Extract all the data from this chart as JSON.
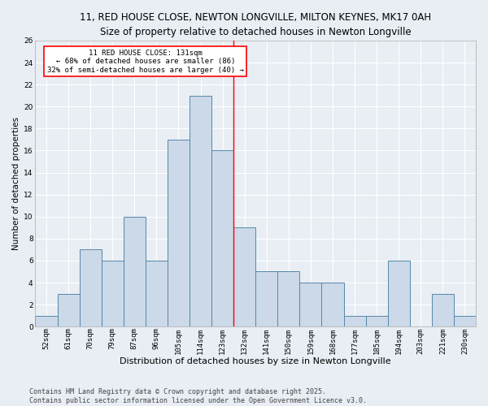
{
  "title": "11, RED HOUSE CLOSE, NEWTON LONGVILLE, MILTON KEYNES, MK17 0AH",
  "subtitle": "Size of property relative to detached houses in Newton Longville",
  "xlabel": "Distribution of detached houses by size in Newton Longville",
  "ylabel": "Number of detached properties",
  "bar_values": [
    1,
    3,
    7,
    6,
    10,
    6,
    17,
    21,
    16,
    9,
    5,
    5,
    4,
    4,
    1,
    1,
    6,
    0,
    3,
    1
  ],
  "bin_labels": [
    "52sqm",
    "61sqm",
    "70sqm",
    "79sqm",
    "87sqm",
    "96sqm",
    "105sqm",
    "114sqm",
    "123sqm",
    "132sqm",
    "141sqm",
    "150sqm",
    "159sqm",
    "168sqm",
    "177sqm",
    "185sqm",
    "194sqm",
    "203sqm",
    "221sqm",
    "230sqm"
  ],
  "bar_color": "#ccd9e8",
  "bar_edge_color": "#5588aa",
  "background_color": "#e8eef4",
  "grid_color": "#ffffff",
  "vline_x": 8.5,
  "vline_color": "red",
  "annotation_text": "11 RED HOUSE CLOSE: 131sqm\n← 68% of detached houses are smaller (86)\n32% of semi-detached houses are larger (40) →",
  "annotation_box_color": "white",
  "annotation_box_edge": "red",
  "ylim": [
    0,
    26
  ],
  "yticks": [
    0,
    2,
    4,
    6,
    8,
    10,
    12,
    14,
    16,
    18,
    20,
    22,
    24,
    26
  ],
  "footer": "Contains HM Land Registry data © Crown copyright and database right 2025.\nContains public sector information licensed under the Open Government Licence v3.0.",
  "title_fontsize": 8.5,
  "xlabel_fontsize": 8,
  "ylabel_fontsize": 7.5,
  "tick_fontsize": 6.5,
  "annot_fontsize": 6.5,
  "footer_fontsize": 6.0
}
